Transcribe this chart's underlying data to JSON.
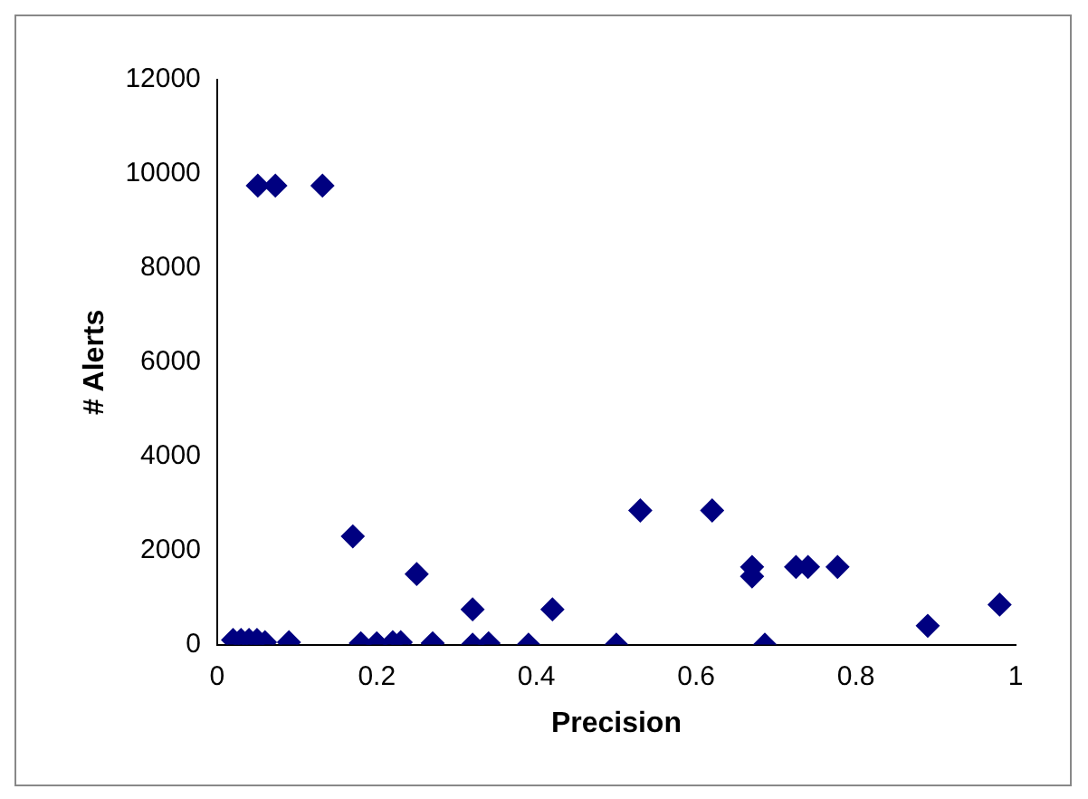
{
  "chart_data": {
    "type": "scatter",
    "xlabel": "Precision",
    "ylabel": "# Alerts",
    "x": [
      0.051,
      0.073,
      0.132,
      0.02,
      0.03,
      0.04,
      0.05,
      0.06,
      0.09,
      0.18,
      0.2,
      0.22,
      0.23,
      0.27,
      0.32,
      0.34,
      0.39,
      0.5,
      0.686,
      0.17,
      0.25,
      0.32,
      0.42,
      0.53,
      0.62,
      0.67,
      0.67,
      0.725,
      0.74,
      0.777,
      0.89,
      0.98
    ],
    "values": [
      9750,
      9750,
      9750,
      100,
      100,
      100,
      100,
      50,
      50,
      30,
      30,
      50,
      50,
      30,
      0,
      30,
      0,
      0,
      0,
      2300,
      1500,
      750,
      750,
      2850,
      2850,
      1650,
      1450,
      1650,
      1650,
      1650,
      400,
      850
    ],
    "color": "#000080",
    "marker": "diamond",
    "xlim": [
      0,
      1
    ],
    "xticks": [
      0,
      0.2,
      0.4,
      0.6,
      0.8,
      1
    ],
    "ylim": [
      0,
      12000
    ],
    "yticks": [
      0,
      2000,
      4000,
      6000,
      8000,
      10000,
      12000
    ],
    "grid": false,
    "legend": false
  }
}
